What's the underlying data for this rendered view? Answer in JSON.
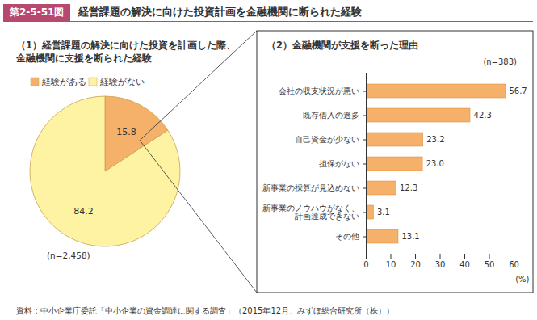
{
  "header": {
    "number": "第2-5-51図",
    "title": "経営課題の解決に向けた投資計画を金融機関に断られた経験"
  },
  "source": "資料：中小企業庁委託「中小企業の資金調達に関する調査」（2015年12月、みずほ総合研究所（株））",
  "chart_data": [
    {
      "type": "pie",
      "title": "（1）経営課題の解決に向けた投資を計画した際、\n金融機関に支援を断られた経験",
      "subtitle": "(n=2,458)",
      "categories": [
        "経験がある",
        "経験がない"
      ],
      "values": [
        15.8,
        84.2
      ],
      "colors": [
        "#f5b06a",
        "#fdf3a2"
      ],
      "legend": "top",
      "data_labels": true
    },
    {
      "type": "bar",
      "orientation": "horizontal",
      "title": "（2）金融機関が支援を断った理由",
      "subtitle": "(n=383)",
      "categories": [
        "会社の収支状況が悪い",
        "既存借入の過多",
        "自己資金が少ない",
        "担保がない",
        "新事業の採算が見込めない",
        "新事業のノウハウがなく、\n計画達成できない",
        "その他"
      ],
      "values": [
        56.7,
        42.3,
        23.2,
        23.0,
        12.3,
        3.1,
        13.1
      ],
      "value_labels": [
        "56.7",
        "42.3",
        "23.2",
        "23.0",
        "12.3",
        "3.1",
        "13.1"
      ],
      "color": "#f5b06a",
      "x_label": "(%)",
      "xlim": [
        0,
        60
      ],
      "xticks": [
        0,
        10,
        20,
        30,
        40,
        50,
        60
      ],
      "data_labels": true
    }
  ]
}
